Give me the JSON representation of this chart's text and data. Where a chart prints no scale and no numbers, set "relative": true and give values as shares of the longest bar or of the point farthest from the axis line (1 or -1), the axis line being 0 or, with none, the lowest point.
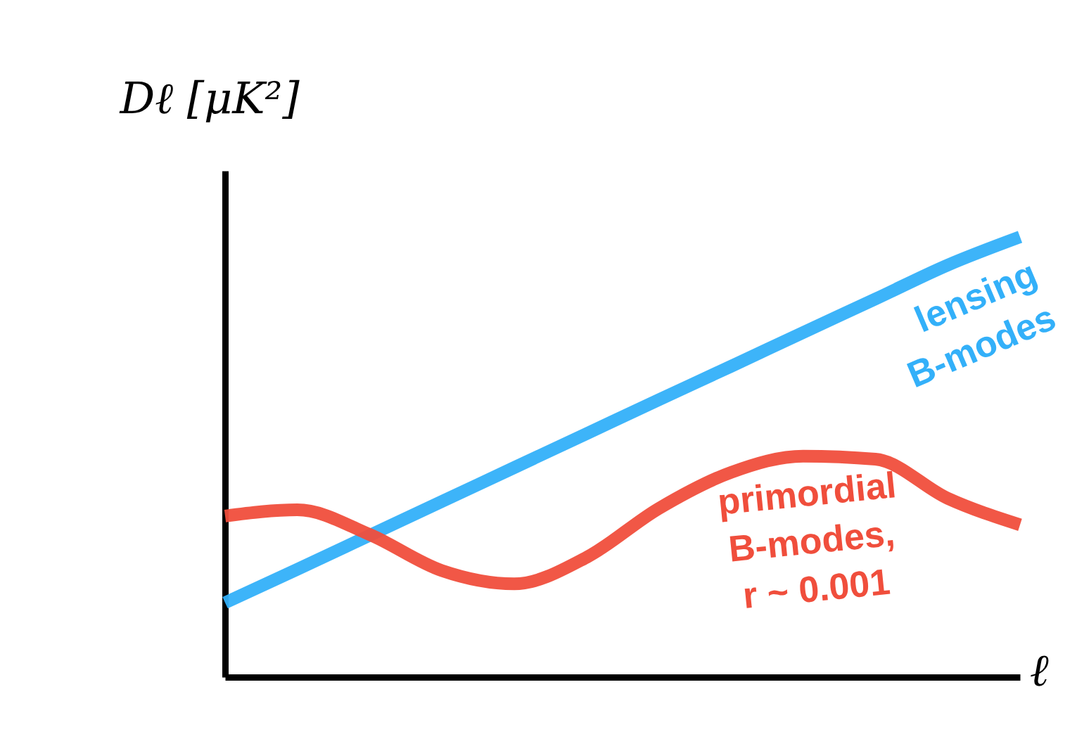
{
  "chart_data": {
    "type": "line",
    "relative": true,
    "xlabel": "ℓ",
    "ylabel": "Dℓ [μK²]",
    "categories": [
      null,
      null,
      null,
      null,
      null,
      null,
      null,
      null,
      null,
      null,
      null,
      null
    ],
    "series": [
      {
        "name": "lensing B-modes",
        "color": "#33b0f9",
        "values": [
          0.169,
          0.245,
          0.322,
          0.399,
          0.476,
          0.553,
          0.63,
          0.706,
          0.783,
          0.859,
          0.936,
          1.0
        ]
      },
      {
        "name": "primordial B-modes, r ~ 0.001",
        "color": "#f04e3c",
        "values": [
          0.366,
          0.38,
          0.324,
          0.242,
          0.212,
          0.272,
          0.383,
          0.465,
          0.502,
          0.495,
          0.406,
          0.346
        ]
      }
    ],
    "grid": false,
    "legend": false,
    "marker": "none",
    "line_style": "solid"
  }
}
